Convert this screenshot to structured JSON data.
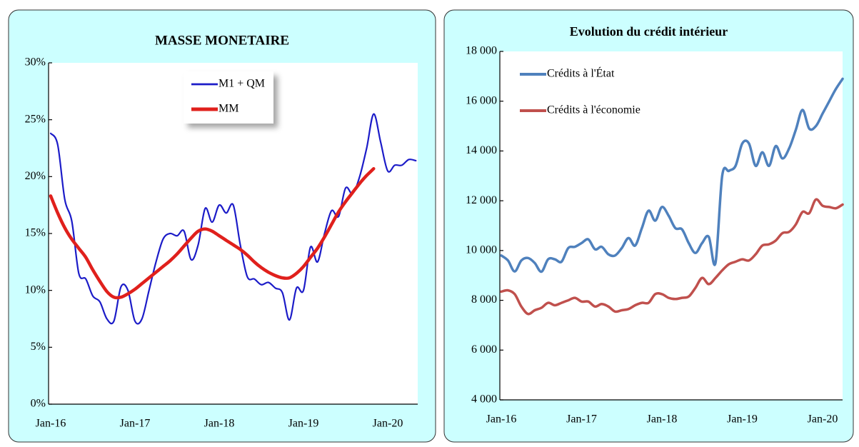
{
  "chart_data": [
    {
      "type": "line",
      "title": "MASSE MONETAIRE",
      "categories": [
        "Jan-16",
        null,
        null,
        null,
        null,
        null,
        null,
        null,
        null,
        null,
        null,
        null,
        "Jan-17",
        null,
        null,
        null,
        null,
        null,
        null,
        null,
        null,
        null,
        null,
        null,
        "Jan-18",
        null,
        null,
        null,
        null,
        null,
        null,
        null,
        null,
        null,
        null,
        null,
        "Jan-19",
        null,
        null,
        null,
        null,
        null,
        null,
        null,
        null,
        null,
        null,
        null,
        "Jan-20",
        null,
        null,
        null,
        null
      ],
      "series": [
        {
          "name": "M1 + QM",
          "color": "#1c1cc8",
          "values": [
            23.8,
            22.8,
            18,
            16.1,
            11.5,
            11,
            9.5,
            9,
            7.5,
            7.3,
            10.3,
            10,
            7.3,
            7.5,
            10,
            12.5,
            14.5,
            15,
            14.8,
            15.2,
            12.7,
            14,
            17.2,
            16,
            17.5,
            16.8,
            17.5,
            14,
            11.2,
            11,
            10.5,
            10.7,
            10.2,
            9.8,
            7.4,
            10.2,
            10,
            13.8,
            12.5,
            15,
            17,
            16.5,
            19,
            18.5,
            20,
            22.5,
            25.5,
            23,
            20.5,
            21,
            21,
            21.5,
            21.4
          ]
        },
        {
          "name": "MM",
          "color": "#e0201c",
          "values": [
            18.3,
            16.8,
            15.5,
            14.5,
            13.7,
            12.9,
            11.8,
            10.8,
            9.9,
            9.4,
            9.4,
            9.7,
            10.1,
            10.6,
            11.1,
            11.6,
            12.1,
            12.6,
            13.2,
            13.9,
            14.6,
            15.2,
            15.4,
            15.2,
            14.8,
            14.4,
            14,
            13.6,
            13.1,
            12.5,
            12,
            11.6,
            11.3,
            11.1,
            11.1,
            11.5,
            12.1,
            12.9,
            13.7,
            14.7,
            15.8,
            16.9,
            17.8,
            18.6,
            19.4,
            20.1,
            20.7,
            null,
            null,
            null,
            null,
            null,
            null
          ]
        }
      ],
      "ylim": [
        0,
        30
      ],
      "yticks": [
        {
          "value": 0,
          "label": "0%"
        },
        {
          "value": 5,
          "label": "5%"
        },
        {
          "value": 10,
          "label": "10%"
        },
        {
          "value": 15,
          "label": "15%"
        },
        {
          "value": 20,
          "label": "20%"
        },
        {
          "value": 25,
          "label": "25%"
        },
        {
          "value": 30,
          "label": "30%"
        }
      ],
      "legend_position": "top-center",
      "legend_box": true,
      "grid": false
    },
    {
      "type": "line",
      "title": "Evolution du crédit intérieur",
      "categories": [
        "Jan-16",
        null,
        null,
        null,
        null,
        null,
        null,
        null,
        null,
        null,
        null,
        null,
        "Jan-17",
        null,
        null,
        null,
        null,
        null,
        null,
        null,
        null,
        null,
        null,
        null,
        "Jan-18",
        null,
        null,
        null,
        null,
        null,
        null,
        null,
        null,
        null,
        null,
        null,
        "Jan-19",
        null,
        null,
        null,
        null,
        null,
        null,
        null,
        null,
        null,
        null,
        null,
        "Jan-20",
        null,
        null,
        null
      ],
      "series": [
        {
          "name": "Crédits à l'État",
          "color": "#4f81bd",
          "values": [
            9800,
            9600,
            9160,
            9600,
            9700,
            9500,
            9150,
            9650,
            9650,
            9550,
            10100,
            10150,
            10300,
            10450,
            10050,
            10150,
            9850,
            9800,
            10100,
            10500,
            10200,
            10900,
            11600,
            11200,
            11750,
            11400,
            10900,
            10850,
            10300,
            9900,
            10300,
            10550,
            9500,
            13000,
            13200,
            13400,
            14300,
            14300,
            13400,
            13950,
            13400,
            14200,
            13700,
            14100,
            14850,
            15650,
            14900,
            15000,
            15500,
            16000,
            16500,
            16900
          ]
        },
        {
          "name": "Crédits à l'économie",
          "color": "#c0504d",
          "values": [
            8350,
            8400,
            8250,
            7750,
            7450,
            7600,
            7700,
            7900,
            7800,
            7900,
            8000,
            8100,
            7950,
            7950,
            7750,
            7850,
            7750,
            7550,
            7600,
            7650,
            7800,
            7900,
            7900,
            8250,
            8250,
            8100,
            8050,
            8100,
            8150,
            8500,
            8900,
            8650,
            8900,
            9200,
            9450,
            9550,
            9650,
            9600,
            9850,
            10200,
            10250,
            10400,
            10700,
            10750,
            11050,
            11550,
            11500,
            12050,
            11800,
            11750,
            11700,
            11850
          ]
        }
      ],
      "ylim": [
        4000,
        18000
      ],
      "yticks": [
        {
          "value": 4000,
          "label": "4 000"
        },
        {
          "value": 6000,
          "label": "6 000"
        },
        {
          "value": 8000,
          "label": "8 000"
        },
        {
          "value": 10000,
          "label": "10 000"
        },
        {
          "value": 12000,
          "label": "12 000"
        },
        {
          "value": 14000,
          "label": "14 000"
        },
        {
          "value": 16000,
          "label": "16 000"
        },
        {
          "value": 18000,
          "label": "18 000"
        }
      ],
      "legend_position": "top-left",
      "legend_box": false,
      "grid": false
    }
  ]
}
